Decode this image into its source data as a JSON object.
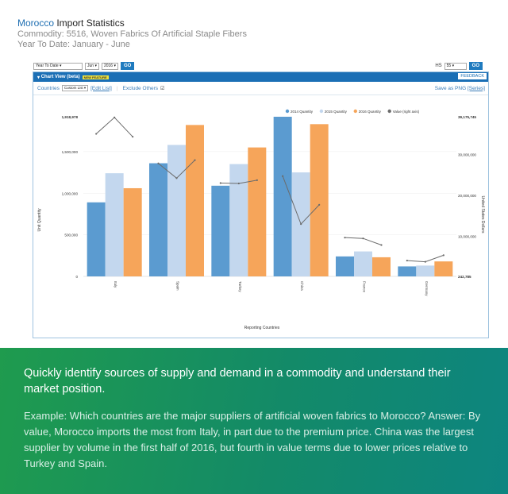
{
  "header": {
    "country": "Morocco",
    "title_rest": " Import Statistics",
    "commodity": "Commodity: 5516, Woven Fabrics Of Artificial Staple Fibers",
    "period": "Year To Date: January - June"
  },
  "controls": {
    "period_select": "Year To Date",
    "month_select": "Jun",
    "year_select": "2016",
    "go_label": "GO",
    "hs_label": "HS",
    "hs_select": "55",
    "go2_label": "GO"
  },
  "panel": {
    "chart_view_label": "Chart View (beta)",
    "new_feature": "NEW FEATURE",
    "feedback": "FEEDBACK",
    "countries_label": "Countries",
    "countries_select": "Custom List",
    "edit_list": "[Edit List]",
    "exclude_others": "Exclude Others",
    "save_png": "Save as PNG",
    "series_link": "[Series]"
  },
  "chart_data": {
    "type": "bar",
    "categories": [
      "Italy",
      "Spain",
      "Turkey",
      "China",
      "France",
      "Germany"
    ],
    "series": [
      {
        "name": "2014 Quantity",
        "color": "#5b9bd0",
        "values": [
          890000,
          1360000,
          1090000,
          1918978,
          240000,
          120000
        ]
      },
      {
        "name": "2015 Quantity",
        "color": "#c3d7ee",
        "values": [
          1240000,
          1580000,
          1350000,
          1250000,
          300000,
          130000
        ]
      },
      {
        "name": "2016 Quantity",
        "color": "#f6a55a",
        "values": [
          1060000,
          1820000,
          1550000,
          1830000,
          230000,
          180000
        ]
      },
      {
        "name": "Value (right axis)",
        "color": "#6b6b6b",
        "type": "line",
        "values": [
          [
            35000000,
            39000000,
            34300000
          ],
          [
            27800000,
            24200000,
            28600000
          ],
          [
            23000000,
            22900000,
            23700000
          ],
          [
            24700000,
            13000000,
            17700000
          ],
          [
            9700000,
            9500000,
            7900000
          ],
          [
            4100000,
            3800000,
            5400000
          ]
        ]
      }
    ],
    "left_axis": {
      "label": "Unit Quantity",
      "ticks": [
        "1,918,978",
        "1,500,000",
        "1,000,000",
        "500,000",
        "0"
      ],
      "ylim": [
        0,
        1918978
      ]
    },
    "right_axis": {
      "label": "United States Dollars",
      "ticks": [
        "39,175,745",
        "30,000,000",
        "20,000,000",
        "10,000,000",
        "242,785"
      ],
      "ylim": [
        242785,
        39175745
      ]
    },
    "xlabel": "Reporting Countries"
  },
  "caption": {
    "lead": "Quickly identify sources of supply and demand in a commodity and understand their market position.",
    "body": "Example: Which countries are the major suppliers of artificial woven fabrics to Morocco? Answer: By value, Morocco imports the most from Italy, in part due to the premium price. China was the largest supplier by volume in the first half of 2016, but fourth in value terms due to lower prices relative to Turkey and Spain."
  }
}
